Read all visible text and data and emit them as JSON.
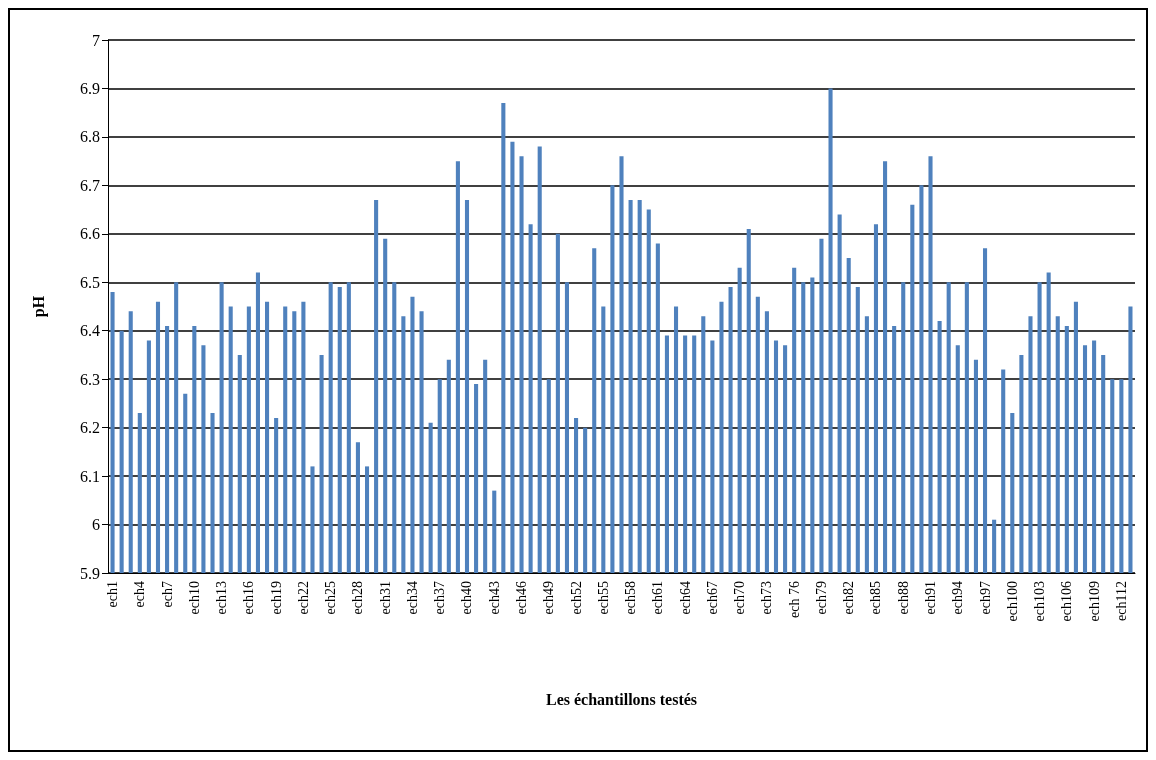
{
  "chart_data": {
    "type": "bar",
    "xlabel": "Les échantillons testés",
    "ylabel": "pH",
    "categories": [
      "ech1",
      null,
      null,
      "ech4",
      null,
      null,
      "ech7",
      null,
      null,
      "ech10",
      null,
      null,
      "ech13",
      null,
      null,
      "ech16",
      null,
      null,
      "ech19",
      null,
      null,
      "ech22",
      null,
      null,
      "ech25",
      null,
      null,
      "ech28",
      null,
      null,
      "ech31",
      null,
      null,
      "ech34",
      null,
      null,
      "ech37",
      null,
      null,
      "ech40",
      null,
      null,
      "ech43",
      null,
      null,
      "ech46",
      null,
      null,
      "ech49",
      null,
      null,
      "ech52",
      null,
      null,
      "ech55",
      null,
      null,
      "ech58",
      null,
      null,
      "ech61",
      null,
      null,
      "ech64",
      null,
      null,
      "ech67",
      null,
      null,
      "ech70",
      null,
      null,
      "ech73",
      null,
      null,
      "ech 76",
      null,
      null,
      "ech79",
      null,
      null,
      "ech82",
      null,
      null,
      "ech85",
      null,
      null,
      "ech88",
      null,
      null,
      "ech91",
      null,
      null,
      "ech94",
      null,
      null,
      "ech97",
      null,
      null,
      "ech100",
      null,
      null,
      "ech103",
      null,
      null,
      "ech106",
      null,
      null,
      "ech109",
      null,
      null,
      "ech112",
      null
    ],
    "values": [
      6.48,
      6.4,
      6.44,
      6.23,
      6.38,
      6.46,
      6.41,
      6.5,
      6.27,
      6.41,
      6.37,
      6.23,
      6.5,
      6.45,
      6.35,
      6.45,
      6.52,
      6.46,
      6.22,
      6.45,
      6.44,
      6.46,
      6.12,
      6.35,
      6.5,
      6.49,
      6.5,
      6.17,
      6.12,
      6.67,
      6.59,
      6.5,
      6.43,
      6.47,
      6.44,
      6.21,
      6.3,
      6.34,
      6.75,
      6.67,
      6.29,
      6.34,
      6.07,
      6.87,
      6.79,
      6.76,
      6.62,
      6.78,
      6.3,
      6.6,
      6.5,
      6.22,
      6.2,
      6.57,
      6.45,
      6.7,
      6.76,
      6.67,
      6.67,
      6.65,
      6.58,
      6.39,
      6.45,
      6.39,
      6.39,
      6.43,
      6.38,
      6.46,
      6.49,
      6.53,
      6.61,
      6.47,
      6.44,
      6.38,
      6.37,
      6.53,
      6.5,
      6.51,
      6.59,
      6.9,
      6.64,
      6.55,
      6.49,
      6.43,
      6.62,
      6.75,
      6.41,
      6.5,
      6.66,
      6.7,
      6.76,
      6.42,
      6.5,
      6.37,
      6.5,
      6.34,
      6.57,
      6.01,
      6.32,
      6.23,
      6.35,
      6.43,
      6.5,
      6.52,
      6.43,
      6.41,
      6.46,
      6.37,
      6.38,
      6.35,
      6.3,
      6.3,
      6.45
    ],
    "color": "#4f81bd",
    "ylim": [
      5.9,
      7
    ],
    "yticks": [
      5.9,
      6,
      6.1,
      6.2,
      6.3,
      6.4,
      6.5,
      6.6,
      6.7,
      6.8,
      6.9,
      7
    ],
    "grid": "y"
  }
}
